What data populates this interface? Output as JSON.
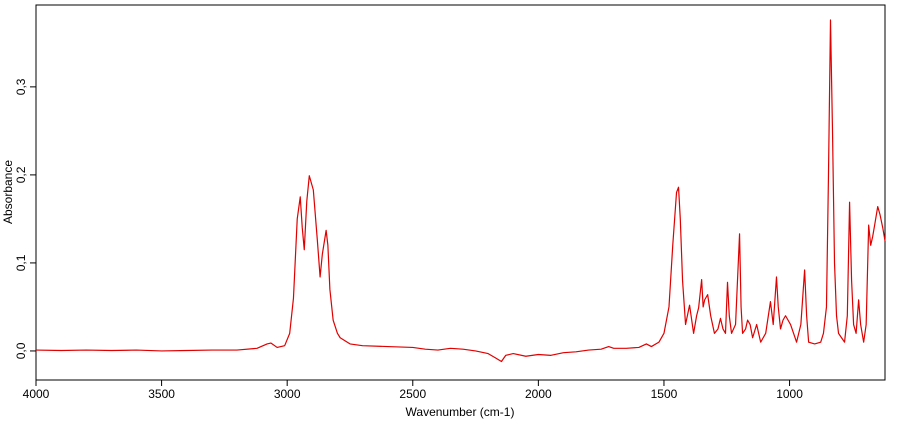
{
  "chart_data": {
    "type": "line",
    "xlabel": "Wavenumber (cm-1)",
    "ylabel": "Absorbance",
    "color": "#e00000",
    "xlim": [
      4000,
      620
    ],
    "xticks": [
      4000,
      3500,
      3000,
      2500,
      2000,
      1500,
      1000
    ],
    "ylim": [
      -0.033,
      0.393
    ],
    "yticks": [
      {
        "value": 0,
        "label": "0,0"
      },
      {
        "value": 0.1,
        "label": "0,1"
      },
      {
        "value": 0.2,
        "label": "0,2"
      },
      {
        "value": 0.3,
        "label": "0,3"
      }
    ],
    "x": [
      4000,
      3900,
      3800,
      3700,
      3600,
      3500,
      3400,
      3300,
      3200,
      3120,
      3080,
      3065,
      3040,
      3010,
      2990,
      2975,
      2960,
      2948,
      2940,
      2932,
      2922,
      2912,
      2896,
      2880,
      2869,
      2860,
      2845,
      2838,
      2830,
      2817,
      2800,
      2789,
      2750,
      2700,
      2600,
      2500,
      2450,
      2400,
      2350,
      2300,
      2250,
      2200,
      2170,
      2147,
      2130,
      2100,
      2050,
      2000,
      1950,
      1900,
      1850,
      1800,
      1750,
      1720,
      1700,
      1650,
      1600,
      1570,
      1550,
      1520,
      1500,
      1480,
      1465,
      1450,
      1442,
      1435,
      1426,
      1414,
      1398,
      1382,
      1370,
      1362,
      1350,
      1344,
      1338,
      1326,
      1314,
      1299,
      1285,
      1275,
      1265,
      1255,
      1247,
      1240,
      1231,
      1215,
      1199,
      1193,
      1187,
      1175,
      1167,
      1157,
      1147,
      1131,
      1115,
      1095,
      1076,
      1065,
      1052,
      1045,
      1036,
      1026,
      1016,
      1006,
      996,
      984,
      972,
      955,
      940,
      932,
      924,
      900,
      876,
      865,
      853,
      845,
      837,
      829,
      821,
      813,
      805,
      781,
      770,
      761,
      753,
      745,
      735,
      725,
      717,
      705,
      695,
      685,
      677,
      669,
      660,
      649,
      640,
      629,
      620
    ],
    "values": [
      0.001,
      0.0005,
      0.001,
      0.0005,
      0.001,
      0,
      0.0005,
      0.001,
      0.001,
      0.003,
      0.008,
      0.009,
      0.004,
      0.006,
      0.02,
      0.06,
      0.15,
      0.175,
      0.14,
      0.115,
      0.17,
      0.199,
      0.183,
      0.126,
      0.084,
      0.11,
      0.137,
      0.12,
      0.07,
      0.035,
      0.02,
      0.015,
      0.008,
      0.006,
      0.005,
      0.004,
      0.002,
      0.001,
      0.003,
      0.002,
      0,
      -0.003,
      -0.008,
      -0.012,
      -0.005,
      -0.003,
      -0.006,
      -0.004,
      -0.005,
      -0.002,
      -0.001,
      0.001,
      0.002,
      0.005,
      0.003,
      0.003,
      0.004,
      0.008,
      0.005,
      0.01,
      0.02,
      0.05,
      0.12,
      0.18,
      0.186,
      0.15,
      0.08,
      0.03,
      0.052,
      0.02,
      0.04,
      0.049,
      0.081,
      0.05,
      0.058,
      0.064,
      0.04,
      0.02,
      0.025,
      0.037,
      0.025,
      0.02,
      0.078,
      0.04,
      0.02,
      0.03,
      0.133,
      0.05,
      0.02,
      0.025,
      0.035,
      0.03,
      0.015,
      0.03,
      0.01,
      0.02,
      0.056,
      0.03,
      0.084,
      0.05,
      0.025,
      0.035,
      0.04,
      0.035,
      0.03,
      0.02,
      0.01,
      0.03,
      0.092,
      0.04,
      0.01,
      0.008,
      0.01,
      0.02,
      0.05,
      0.2,
      0.376,
      0.25,
      0.1,
      0.04,
      0.02,
      0.01,
      0.04,
      0.169,
      0.08,
      0.03,
      0.02,
      0.058,
      0.03,
      0.01,
      0.03,
      0.143,
      0.12,
      0.13,
      0.145,
      0.164,
      0.155,
      0.14,
      0.125
    ]
  }
}
